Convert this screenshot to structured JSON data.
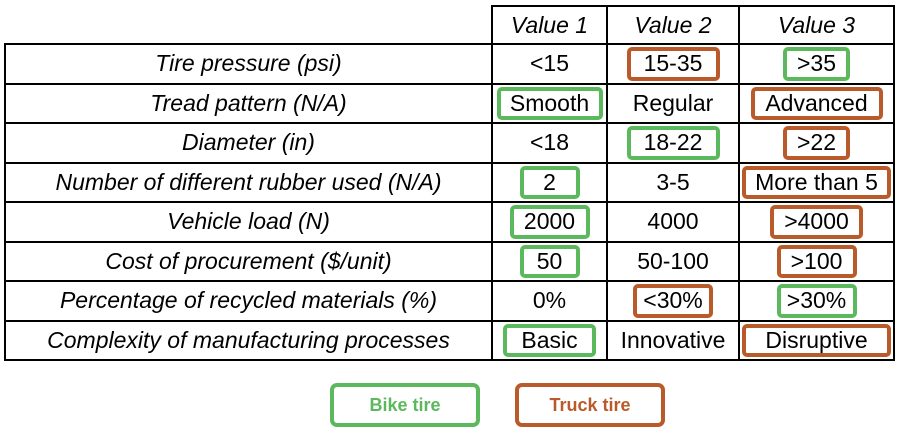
{
  "table": {
    "headers": [
      "Value 1",
      "Value 2",
      "Value 3"
    ],
    "rows": [
      {
        "param": "Tire pressure (psi)",
        "values": [
          "<15",
          "15-35",
          ">35"
        ]
      },
      {
        "param": "Tread pattern (N/A)",
        "values": [
          "Smooth",
          "Regular",
          "Advanced"
        ]
      },
      {
        "param": "Diameter (in)",
        "values": [
          "<18",
          "18-22",
          ">22"
        ]
      },
      {
        "param": "Number of different rubber used (N/A)",
        "values": [
          "2",
          "3-5",
          "More than 5"
        ]
      },
      {
        "param": "Vehicle load (N)",
        "values": [
          "2000",
          "4000",
          ">4000"
        ]
      },
      {
        "param": "Cost of procurement ($/unit)",
        "values": [
          "50",
          "50-100",
          ">100"
        ]
      },
      {
        "param": "Percentage of recycled materials (%)",
        "values": [
          "0%",
          "<30%",
          ">30%"
        ]
      },
      {
        "param": "Complexity of manufacturing processes",
        "values": [
          "Basic",
          "Innovative",
          "Disruptive"
        ]
      }
    ]
  },
  "highlights": {
    "bike": [
      [
        0,
        2
      ],
      [
        1,
        0
      ],
      [
        2,
        1
      ],
      [
        3,
        0
      ],
      [
        4,
        0
      ],
      [
        5,
        0
      ],
      [
        6,
        2
      ],
      [
        7,
        0
      ]
    ],
    "truck": [
      [
        0,
        1
      ],
      [
        1,
        2
      ],
      [
        2,
        2
      ],
      [
        3,
        2
      ],
      [
        4,
        2
      ],
      [
        5,
        2
      ],
      [
        6,
        1
      ],
      [
        7,
        2
      ]
    ]
  },
  "legend": {
    "bike_label": "Bike tire",
    "truck_label": "Truck tire"
  },
  "colors": {
    "bike": "#5cb85c",
    "truck": "#b95a2a"
  }
}
